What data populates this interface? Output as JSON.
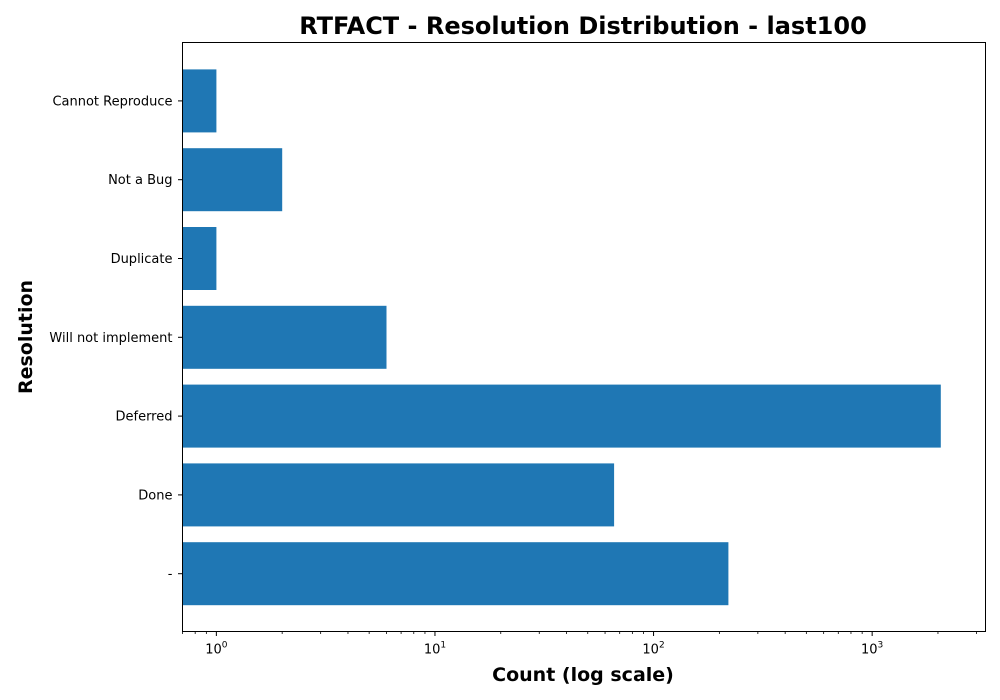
{
  "chart_data": {
    "type": "bar",
    "orientation": "horizontal",
    "title": "RTFACT - Resolution Distribution - last100",
    "xlabel": "Count (log scale)",
    "ylabel": "Resolution",
    "xscale": "log",
    "xlim": [
      0.7,
      3300
    ],
    "categories": [
      "Cannot Reproduce",
      "Not a Bug",
      "Duplicate",
      "Will not implement",
      "Deferred",
      "Done",
      "-"
    ],
    "values": [
      1,
      2,
      1,
      6,
      2060,
      66,
      220
    ],
    "x_ticks": [
      {
        "value": 1,
        "base": "10",
        "exp": "0"
      },
      {
        "value": 10,
        "base": "10",
        "exp": "1"
      },
      {
        "value": 100,
        "base": "10",
        "exp": "2"
      },
      {
        "value": 1000,
        "base": "10",
        "exp": "3"
      }
    ],
    "bar_color": "#1f77b4",
    "grid": false,
    "legend": false
  }
}
